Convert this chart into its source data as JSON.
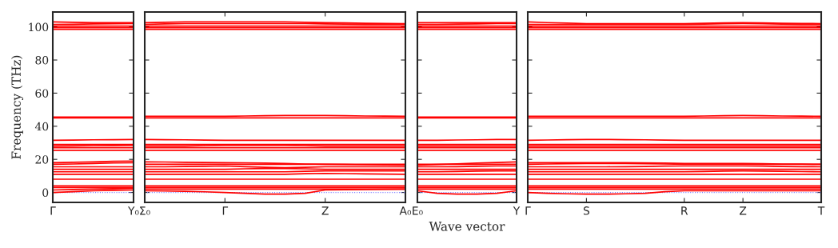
{
  "chart_data": [
    {
      "type": "line",
      "ylabel": "Frequency (THz)",
      "ylim": [
        -6,
        109
      ],
      "yticks": [
        0,
        20,
        40,
        60,
        80,
        100
      ],
      "grid": false,
      "marker": "none",
      "line_style": "solid",
      "ref_lines": [
        {
          "axis": "y",
          "value": 0,
          "color": "#8080ff",
          "line_style": "dotted"
        }
      ],
      "categories": [
        "Γ",
        null,
        null,
        null,
        "Y₀"
      ],
      "series": [
        {
          "color": "#ff0000",
          "values": [
            98.5,
            98.5,
            98.5,
            98.5,
            98.5
          ]
        },
        {
          "color": "#ff0000",
          "values": [
            99.5,
            99.5,
            99.5,
            99.5,
            99.5
          ]
        },
        {
          "color": "#ff0000",
          "values": [
            100.5,
            100.5,
            100.5,
            100.5,
            100.5
          ]
        },
        {
          "color": "#ff0000",
          "values": [
            101.5,
            101.6,
            101.8,
            101.9,
            102
          ]
        },
        {
          "color": "#ff0000",
          "values": [
            103,
            102.8,
            102.5,
            102.5,
            102.5
          ]
        },
        {
          "color": "#ff0000",
          "values": [
            45,
            45,
            45,
            45,
            45
          ]
        },
        {
          "color": "#ff0000",
          "values": [
            45.6,
            45.6,
            45.6,
            45.6,
            45.6
          ]
        },
        {
          "color": "#ff0000",
          "values": [
            31.5,
            31.6,
            31.8,
            31.9,
            32
          ]
        },
        {
          "color": "#ff0000",
          "values": [
            25.5,
            25.5,
            25.5,
            25.5,
            25.5
          ]
        },
        {
          "color": "#ff0000",
          "values": [
            27,
            27,
            27,
            27,
            27
          ]
        },
        {
          "color": "#ff0000",
          "values": [
            28,
            28.1,
            28.3,
            28.4,
            28.5
          ]
        },
        {
          "color": "#ff0000",
          "values": [
            29,
            29,
            29,
            29,
            29
          ]
        },
        {
          "color": "#ff0000",
          "values": [
            8,
            8,
            8,
            8,
            8
          ]
        },
        {
          "color": "#ff0000",
          "values": [
            11,
            11,
            11,
            11,
            11
          ]
        },
        {
          "color": "#ff0000",
          "values": [
            12.5,
            12.5,
            12.5,
            12.5,
            12.5
          ]
        },
        {
          "color": "#ff0000",
          "values": [
            14,
            14,
            14,
            14,
            14
          ]
        },
        {
          "color": "#ff0000",
          "values": [
            15.5,
            15.5,
            15.5,
            15.5,
            15.5
          ]
        },
        {
          "color": "#ff0000",
          "values": [
            17,
            17.2,
            17.5,
            17.8,
            18
          ]
        },
        {
          "color": "#ff0000",
          "values": [
            18,
            18.2,
            18.5,
            18.8,
            19
          ]
        },
        {
          "color": "#ff0000",
          "values": [
            0,
            0.5,
            1,
            1.3,
            1.5
          ]
        },
        {
          "color": "#ff0000",
          "values": [
            1.5,
            1.8,
            2,
            2.3,
            2.5
          ]
        },
        {
          "color": "#ff0000",
          "values": [
            3,
            3,
            3,
            3,
            3
          ]
        },
        {
          "color": "#ff0000",
          "values": [
            4,
            4,
            4,
            4,
            4
          ]
        }
      ]
    },
    {
      "type": "line",
      "ylim": [
        -6,
        109
      ],
      "yticks": [
        0,
        20,
        40,
        60,
        80,
        100
      ],
      "tick_labels": "x",
      "grid": false,
      "marker": "none",
      "line_style": "solid",
      "ref_lines": [
        {
          "axis": "y",
          "value": 0,
          "color": "#8080ff",
          "line_style": "dotted"
        }
      ],
      "categories": [
        "Σ₀",
        null,
        null,
        null,
        "Γ",
        null,
        null,
        null,
        null,
        "Z",
        null,
        null,
        null,
        "A₀"
      ],
      "series": [
        {
          "color": "#ff0000",
          "values": [
            98.5,
            98.5,
            98.5,
            98.5,
            98.5,
            98.5,
            98.5,
            98.5,
            98.5,
            98.5,
            98.5,
            98.5,
            98.5,
            98.5
          ]
        },
        {
          "color": "#ff0000",
          "values": [
            99.5,
            99.5,
            99.5,
            99.5,
            99.5,
            99.5,
            99.5,
            99.5,
            99.5,
            99.5,
            99.5,
            99.5,
            99.5,
            99.5
          ]
        },
        {
          "color": "#ff0000",
          "values": [
            100.5,
            100.5,
            100.5,
            100.5,
            100.5,
            100.5,
            100.5,
            100.5,
            100.5,
            100.5,
            100.5,
            100.5,
            100.5,
            100.5
          ]
        },
        {
          "color": "#ff0000",
          "values": [
            101.5,
            101.8,
            102,
            102,
            102,
            102,
            102,
            102,
            102,
            101.8,
            101.7,
            101.6,
            101.5,
            101.5
          ]
        },
        {
          "color": "#ff0000",
          "values": [
            102.5,
            102.8,
            103,
            103,
            103,
            103,
            103,
            103,
            102.8,
            102.5,
            102.4,
            102.2,
            102.1,
            102
          ]
        },
        {
          "color": "#ff0000",
          "values": [
            45,
            45,
            45,
            45,
            45,
            45,
            45,
            45,
            45,
            45,
            45,
            45,
            45,
            45
          ]
        },
        {
          "color": "#ff0000",
          "values": [
            46,
            46,
            46,
            46,
            46,
            46.2,
            46.4,
            46.5,
            46.5,
            46.5,
            46.4,
            46.2,
            46.1,
            46
          ]
        },
        {
          "color": "#ff0000",
          "values": [
            32,
            31.9,
            31.8,
            31.6,
            31.5,
            31.5,
            31.5,
            31.5,
            31.5,
            31.5,
            31.5,
            31.5,
            31.5,
            31.5
          ]
        },
        {
          "color": "#ff0000",
          "values": [
            25.5,
            25.5,
            25.5,
            25.5,
            25.5,
            25.5,
            25.5,
            25.5,
            25.5,
            25.5,
            25.5,
            25.5,
            25.5,
            25.5
          ]
        },
        {
          "color": "#ff0000",
          "values": [
            27,
            27,
            27,
            27,
            27,
            27,
            27,
            27,
            27,
            27,
            27,
            27,
            27,
            27
          ]
        },
        {
          "color": "#ff0000",
          "values": [
            28,
            28,
            28,
            28.3,
            28.5,
            28.5,
            28.5,
            28.5,
            28.3,
            28,
            28,
            28,
            28,
            28
          ]
        },
        {
          "color": "#ff0000",
          "values": [
            29,
            29,
            29,
            29,
            29,
            29,
            29,
            29,
            29,
            29,
            29,
            29,
            29,
            29
          ]
        },
        {
          "color": "#ff0000",
          "values": [
            8,
            8,
            8,
            8,
            8,
            8,
            8,
            8,
            8,
            8,
            8,
            8,
            8,
            8
          ]
        },
        {
          "color": "#ff0000",
          "values": [
            11,
            11,
            11,
            11,
            11,
            11,
            11,
            11,
            11.3,
            11.5,
            11.4,
            11.2,
            11.1,
            11
          ]
        },
        {
          "color": "#ff0000",
          "values": [
            12.5,
            12.5,
            12.5,
            12.5,
            12.5,
            12.5,
            12.5,
            12.5,
            12.8,
            13,
            13,
            13,
            13,
            13
          ]
        },
        {
          "color": "#ff0000",
          "values": [
            14,
            14,
            14,
            14,
            14,
            14.3,
            14.5,
            14.5,
            14.3,
            14,
            14,
            14,
            14,
            14
          ]
        },
        {
          "color": "#ff0000",
          "values": [
            15.5,
            15.5,
            15.7,
            15.8,
            16,
            15.6,
            15.2,
            15,
            15.2,
            15.5,
            15.5,
            15.5,
            15.5,
            15.5
          ]
        },
        {
          "color": "#ff0000",
          "values": [
            17,
            17,
            17,
            17,
            17,
            17,
            17,
            17,
            17,
            17,
            17,
            17,
            17,
            17
          ]
        },
        {
          "color": "#ff0000",
          "values": [
            18.5,
            18.4,
            18.2,
            18.1,
            18,
            17.9,
            17.7,
            17.5,
            17.2,
            17,
            16.9,
            16.7,
            16.6,
            16.5
          ]
        },
        {
          "color": "#ff0000",
          "values": [
            1,
            0.9,
            0.7,
            0.4,
            0,
            -0.5,
            -1,
            -1,
            -0.5,
            1.5,
            1.7,
            1.8,
            1.9,
            2
          ]
        },
        {
          "color": "#ff0000",
          "values": [
            2,
            2,
            2,
            2,
            2,
            2,
            2,
            2,
            2,
            2,
            2,
            2,
            2,
            2
          ]
        },
        {
          "color": "#ff0000",
          "values": [
            3,
            3,
            3,
            3,
            3,
            3,
            3,
            3,
            3,
            3,
            3,
            3,
            3,
            3
          ]
        },
        {
          "color": "#ff0000",
          "values": [
            4,
            4,
            4,
            4,
            4,
            4,
            4,
            4,
            4,
            4,
            4,
            4,
            4,
            4
          ]
        }
      ]
    },
    {
      "type": "line",
      "xlabel": "Wave vector",
      "ylim": [
        -6,
        109
      ],
      "yticks": [
        0,
        20,
        40,
        60,
        80,
        100
      ],
      "tick_labels": "x",
      "grid": false,
      "marker": "none",
      "line_style": "solid",
      "ref_lines": [
        {
          "axis": "y",
          "value": 0,
          "color": "#8080ff",
          "line_style": "dotted"
        }
      ],
      "categories": [
        "E₀",
        null,
        null,
        null,
        null,
        "Y"
      ],
      "series": [
        {
          "color": "#ff0000",
          "values": [
            98.5,
            98.5,
            98.5,
            98.5,
            98.5,
            98.5
          ]
        },
        {
          "color": "#ff0000",
          "values": [
            99.5,
            99.5,
            99.5,
            99.5,
            99.5,
            99.5
          ]
        },
        {
          "color": "#ff0000",
          "values": [
            100.5,
            100.5,
            100.5,
            100.5,
            100.5,
            100.5
          ]
        },
        {
          "color": "#ff0000",
          "values": [
            101.5,
            101.5,
            101.7,
            101.8,
            102,
            102
          ]
        },
        {
          "color": "#ff0000",
          "values": [
            102.5,
            102.5,
            102.5,
            102.5,
            102.5,
            102.5
          ]
        },
        {
          "color": "#ff0000",
          "values": [
            45,
            45,
            45,
            45,
            45,
            45
          ]
        },
        {
          "color": "#ff0000",
          "values": [
            45.6,
            45.6,
            45.6,
            45.6,
            45.6,
            45.6
          ]
        },
        {
          "color": "#ff0000",
          "values": [
            31.5,
            31.5,
            31.7,
            31.8,
            32,
            32
          ]
        },
        {
          "color": "#ff0000",
          "values": [
            25.5,
            25.5,
            25.5,
            25.5,
            25.5,
            25.5
          ]
        },
        {
          "color": "#ff0000",
          "values": [
            27,
            27,
            27,
            27,
            27,
            27
          ]
        },
        {
          "color": "#ff0000",
          "values": [
            28,
            28,
            28,
            28,
            28,
            28
          ]
        },
        {
          "color": "#ff0000",
          "values": [
            29,
            29,
            29,
            29,
            29,
            29
          ]
        },
        {
          "color": "#ff0000",
          "values": [
            8,
            8,
            8,
            8,
            8,
            8
          ]
        },
        {
          "color": "#ff0000",
          "values": [
            11,
            11,
            11,
            11,
            11,
            11
          ]
        },
        {
          "color": "#ff0000",
          "values": [
            12.5,
            12.5,
            12.7,
            12.9,
            13,
            13
          ]
        },
        {
          "color": "#ff0000",
          "values": [
            14,
            14,
            14,
            14,
            14,
            14
          ]
        },
        {
          "color": "#ff0000",
          "values": [
            15.5,
            15.5,
            15.6,
            15.8,
            16,
            16
          ]
        },
        {
          "color": "#ff0000",
          "values": [
            16.5,
            16.9,
            17.3,
            17.7,
            18.1,
            18.5
          ]
        },
        {
          "color": "#ff0000",
          "values": [
            17,
            17,
            17,
            17,
            17,
            17
          ]
        },
        {
          "color": "#ff0000",
          "values": [
            1,
            -0.5,
            -1,
            -1,
            -0.5,
            1
          ]
        },
        {
          "color": "#ff0000",
          "values": [
            2,
            2,
            2,
            2,
            2,
            2
          ]
        },
        {
          "color": "#ff0000",
          "values": [
            3,
            3,
            3,
            3,
            3,
            3
          ]
        },
        {
          "color": "#ff0000",
          "values": [
            4,
            4,
            4,
            4,
            4,
            4
          ]
        }
      ]
    },
    {
      "type": "line",
      "ylim": [
        -6,
        109
      ],
      "yticks": [
        0,
        20,
        40,
        60,
        80,
        100
      ],
      "tick_labels": "x",
      "grid": false,
      "marker": "none",
      "line_style": "solid",
      "ref_lines": [
        {
          "axis": "y",
          "value": 0,
          "color": "#8080ff",
          "line_style": "dotted"
        }
      ],
      "categories": [
        "Γ",
        null,
        null,
        "S",
        null,
        null,
        null,
        null,
        "R",
        null,
        null,
        "Z",
        null,
        null,
        null,
        "T"
      ],
      "series": [
        {
          "color": "#ff0000",
          "values": [
            98.5,
            98.5,
            98.5,
            98.5,
            98.5,
            98.5,
            98.5,
            98.5,
            98.5,
            98.5,
            98.5,
            98.5,
            98.5,
            98.5,
            98.5,
            98.5
          ]
        },
        {
          "color": "#ff0000",
          "values": [
            99.5,
            99.5,
            99.5,
            99.5,
            99.5,
            99.5,
            99.5,
            99.5,
            99.5,
            99.5,
            99.5,
            99.5,
            99.5,
            99.5,
            99.5,
            99.5
          ]
        },
        {
          "color": "#ff0000",
          "values": [
            100.5,
            100.5,
            100.5,
            100.5,
            100.5,
            100.5,
            100.5,
            100.5,
            100.5,
            100.5,
            100.5,
            100.5,
            100.5,
            100.5,
            100.5,
            100.5
          ]
        },
        {
          "color": "#ff0000",
          "values": [
            101.5,
            101.5,
            101.5,
            101.5,
            101.5,
            101.5,
            101.5,
            101.5,
            101.5,
            101.7,
            101.9,
            102,
            101.9,
            101.7,
            101.6,
            101.5
          ]
        },
        {
          "color": "#ff0000",
          "values": [
            103,
            102.6,
            102.3,
            102,
            102,
            102,
            102,
            102,
            102,
            102.2,
            102.4,
            102.5,
            102.4,
            102.2,
            102.1,
            102
          ]
        },
        {
          "color": "#ff0000",
          "values": [
            45,
            45,
            45,
            45,
            45,
            45,
            45,
            45,
            45,
            45,
            45,
            45,
            45,
            45,
            45,
            45
          ]
        },
        {
          "color": "#ff0000",
          "values": [
            46,
            46,
            46,
            46,
            46,
            46,
            46,
            46,
            46,
            46.2,
            46.4,
            46.5,
            46.4,
            46.2,
            46.1,
            46
          ]
        },
        {
          "color": "#ff0000",
          "values": [
            31.5,
            31.7,
            31.9,
            32,
            32,
            31.9,
            31.8,
            31.6,
            31.5,
            31.5,
            31.5,
            31.5,
            31.5,
            31.5,
            31.5,
            31.5
          ]
        },
        {
          "color": "#ff0000",
          "values": [
            25.5,
            25.5,
            25.5,
            25.5,
            25.5,
            25.5,
            25.5,
            25.5,
            25.5,
            25.5,
            25.5,
            25.5,
            25.5,
            25.5,
            25.5,
            25.5
          ]
        },
        {
          "color": "#ff0000",
          "values": [
            27,
            27,
            27,
            27,
            27,
            27,
            27,
            27,
            27,
            27,
            27,
            27,
            27,
            27,
            27,
            27
          ]
        },
        {
          "color": "#ff0000",
          "values": [
            28,
            28,
            28,
            28,
            28,
            28,
            28,
            28,
            28,
            28,
            28,
            28,
            28,
            28,
            28,
            28
          ]
        },
        {
          "color": "#ff0000",
          "values": [
            29,
            29,
            29,
            29,
            29,
            29,
            29,
            29,
            29,
            29,
            29,
            29,
            29,
            29,
            29,
            29
          ]
        },
        {
          "color": "#ff0000",
          "values": [
            8,
            8,
            8,
            8,
            8,
            8,
            8,
            8,
            8,
            8,
            8,
            8,
            8,
            8,
            8,
            8
          ]
        },
        {
          "color": "#ff0000",
          "values": [
            11,
            11,
            11,
            11,
            11,
            11,
            11,
            11,
            11,
            11,
            11,
            11,
            11,
            11,
            11,
            11
          ]
        },
        {
          "color": "#ff0000",
          "values": [
            12.5,
            12.5,
            12.5,
            12.5,
            12.5,
            12.5,
            12.5,
            12.5,
            12.5,
            12.7,
            12.9,
            13,
            12.9,
            12.8,
            12.6,
            12.5
          ]
        },
        {
          "color": "#ff0000",
          "values": [
            14,
            14,
            14,
            14,
            14,
            14,
            14,
            14,
            14,
            14,
            14,
            14,
            14,
            14,
            14,
            14
          ]
        },
        {
          "color": "#ff0000",
          "values": [
            15.5,
            15.5,
            15.5,
            15.5,
            15.5,
            15.6,
            15.7,
            15.9,
            16,
            16,
            16,
            16,
            15.9,
            15.7,
            15.6,
            15.5
          ]
        },
        {
          "color": "#ff0000",
          "values": [
            17,
            17.2,
            17.4,
            17.5,
            17.5,
            17.5,
            17.4,
            17.2,
            17,
            17,
            17,
            17,
            17,
            17,
            17,
            17
          ]
        },
        {
          "color": "#ff0000",
          "values": [
            18,
            18,
            18,
            18,
            18,
            18,
            17.9,
            17.7,
            17.5,
            17.5,
            17.5,
            17.5,
            17.4,
            17.2,
            17.1,
            17
          ]
        },
        {
          "color": "#ff0000",
          "values": [
            0,
            -0.5,
            -0.8,
            -1,
            -1,
            -0.8,
            -0.5,
            0.5,
            1,
            1,
            1,
            1,
            1,
            1,
            1,
            1
          ]
        },
        {
          "color": "#ff0000",
          "values": [
            2,
            2,
            2,
            2,
            2,
            2,
            2,
            2,
            2,
            2,
            2,
            2,
            2,
            2,
            2,
            2
          ]
        },
        {
          "color": "#ff0000",
          "values": [
            3,
            3,
            3,
            3,
            3,
            3,
            3,
            3,
            3,
            3,
            3,
            3,
            3,
            3,
            3,
            3
          ]
        },
        {
          "color": "#ff0000",
          "values": [
            4,
            4,
            4,
            4,
            4,
            4,
            4,
            4,
            4,
            4,
            4,
            4,
            4,
            4,
            4,
            4
          ]
        }
      ]
    }
  ]
}
